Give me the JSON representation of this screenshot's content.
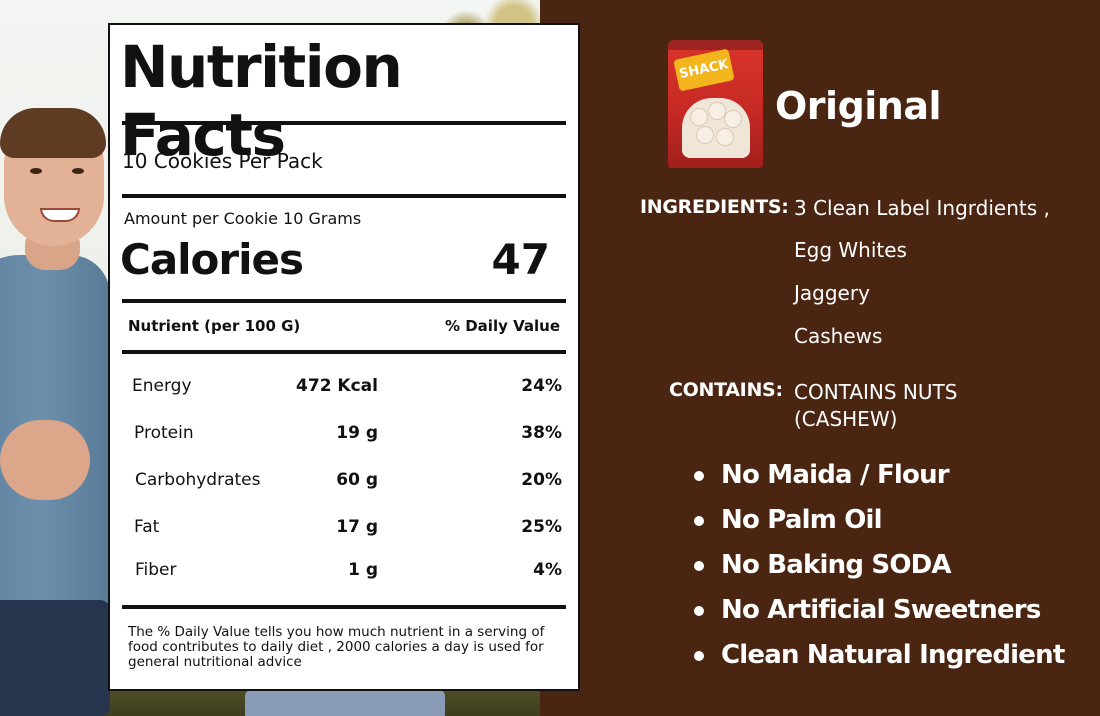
{
  "label": {
    "title": "Nutrition Facts",
    "servings": "10 Cookies Per Pack",
    "amount_per": "Amount per Cookie 10 Grams",
    "calories_label": "Calories",
    "calories_value": "47",
    "header_nutrient": "Nutrient (per 100 G)",
    "header_dv": "% Daily Value",
    "rows": [
      {
        "name": "Energy",
        "amount": "472 Kcal",
        "dv": "24%"
      },
      {
        "name": "Protein",
        "amount": "19 g",
        "dv": "38%"
      },
      {
        "name": "Carbohydrates",
        "amount": "60 g",
        "dv": "20%"
      },
      {
        "name": "Fat",
        "amount": "17 g",
        "dv": "25%"
      },
      {
        "name": "Fiber",
        "amount": "1 g",
        "dv": "4%"
      }
    ],
    "footnote": "The % Daily Value tells you how much nutrient in a serving of food contributes to daily diet , 2000 calories a day is used for general nutritional advice"
  },
  "product": {
    "brand": "SHACK",
    "name": "Original"
  },
  "ingredients": {
    "label": "INGREDIENTS:",
    "items": [
      "3 Clean Label Ingrdients ,",
      "Egg Whites",
      "Jaggery",
      "Cashews"
    ]
  },
  "contains": {
    "label": "CONTAINS:",
    "text": "CONTAINS NUTS (CASHEW)"
  },
  "claims": [
    "No Maida / Flour",
    "No Palm Oil",
    "No Baking SODA",
    "No Artificial Sweetners",
    "Clean Natural Ingredient"
  ],
  "colors": {
    "panel_background": "#4a2612",
    "label_background": "#ffffff",
    "text_light": "#ffffff"
  }
}
